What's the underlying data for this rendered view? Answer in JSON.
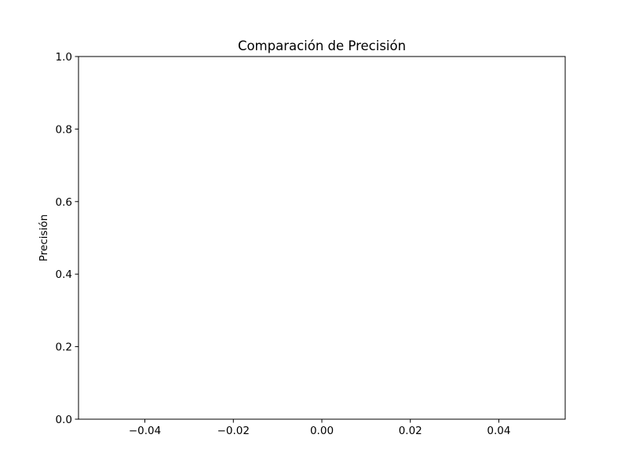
{
  "chart_data": {
    "type": "bar",
    "title": "Comparación de Precisión",
    "xlabel": "",
    "ylabel": "Precisión",
    "categories": [],
    "values": [],
    "xlim": [
      -0.055,
      0.055
    ],
    "ylim": [
      0,
      1.0
    ],
    "x_ticks": [
      -0.04,
      -0.02,
      0.0,
      0.02,
      0.04
    ],
    "x_tick_labels": [
      "−0.04",
      "−0.02",
      "0.00",
      "0.02",
      "0.04"
    ],
    "y_ticks": [
      0.0,
      0.2,
      0.4,
      0.6,
      0.8,
      1.0
    ],
    "y_tick_labels": [
      "0.0",
      "0.2",
      "0.4",
      "0.6",
      "0.8",
      "1.0"
    ],
    "grid": false,
    "legend": "none",
    "colors": {
      "axis": "#000000",
      "background": "#ffffff"
    }
  }
}
